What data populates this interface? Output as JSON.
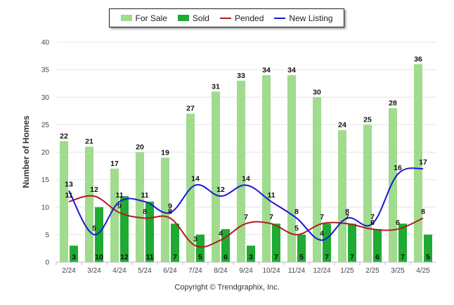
{
  "colors": {
    "for_sale": "#a0db8e",
    "sold": "#1faa32",
    "pended": "#b01e1e",
    "new_listing": "#1818d8"
  },
  "legend": {
    "for_sale": "For Sale",
    "sold": "Sold",
    "pended": "Pended",
    "new_listing": "New Listing"
  },
  "copyright": "Copyright © Trendgraphix, Inc.",
  "chart_data": {
    "type": "bar",
    "ylabel": "Number of Homes",
    "xlabel": "",
    "ylim": [
      0,
      40
    ],
    "yticks": [
      0,
      5,
      10,
      15,
      20,
      25,
      30,
      35,
      40
    ],
    "grid": true,
    "legend_position": "top",
    "categories": [
      "2/24",
      "3/24",
      "4/24",
      "5/24",
      "6/24",
      "7/24",
      "8/24",
      "9/24",
      "10/24",
      "11/24",
      "12/24",
      "1/25",
      "2/25",
      "3/25",
      "4/25"
    ],
    "series": [
      {
        "name": "For Sale",
        "type": "bar",
        "values": [
          22,
          21,
          17,
          20,
          19,
          27,
          31,
          33,
          34,
          34,
          30,
          24,
          25,
          28,
          36
        ]
      },
      {
        "name": "Sold",
        "type": "bar",
        "values": [
          3,
          10,
          12,
          11,
          7,
          5,
          6,
          3,
          7,
          5,
          7,
          7,
          6,
          7,
          5
        ]
      },
      {
        "name": "Pended",
        "type": "line",
        "values": [
          11,
          12,
          9,
          8,
          8,
          3,
          4,
          7,
          7,
          5,
          7,
          7,
          6,
          6,
          8
        ]
      },
      {
        "name": "New Listing",
        "type": "line",
        "values": [
          13,
          5,
          11,
          11,
          9,
          14,
          12,
          14,
          11,
          8,
          4,
          8,
          7,
          16,
          17
        ]
      }
    ]
  }
}
